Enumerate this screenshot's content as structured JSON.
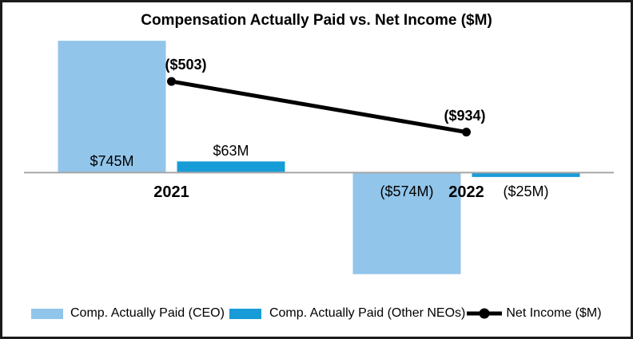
{
  "chart_data": {
    "type": "combo-bar-line",
    "title": "Compensation Actually Paid vs. Net Income ($M)",
    "categories": [
      "2021",
      "2022"
    ],
    "series": [
      {
        "name": "Comp. Actually Paid (CEO)",
        "type": "bar",
        "color": "#92C5EA",
        "values": [
          745,
          -574
        ],
        "data_labels": [
          "$745M",
          "($574M)"
        ]
      },
      {
        "name": "Comp. Actually Paid (Other NEOs)",
        "type": "bar",
        "color": "#189CD8",
        "values": [
          63,
          -25
        ],
        "data_labels": [
          "$63M",
          "($25M)"
        ]
      },
      {
        "name": "Net Income ($M)",
        "type": "line",
        "marker": "circle",
        "color": "#000000",
        "values": [
          -503,
          -934
        ],
        "data_labels": [
          "($503)",
          "($934)"
        ]
      }
    ],
    "primary_ylim": [
      -580,
      750
    ],
    "secondary_ylim": [
      -2150,
      -150
    ],
    "axis_color": "#A6A6A6",
    "grid": false,
    "legend_position": "bottom"
  }
}
